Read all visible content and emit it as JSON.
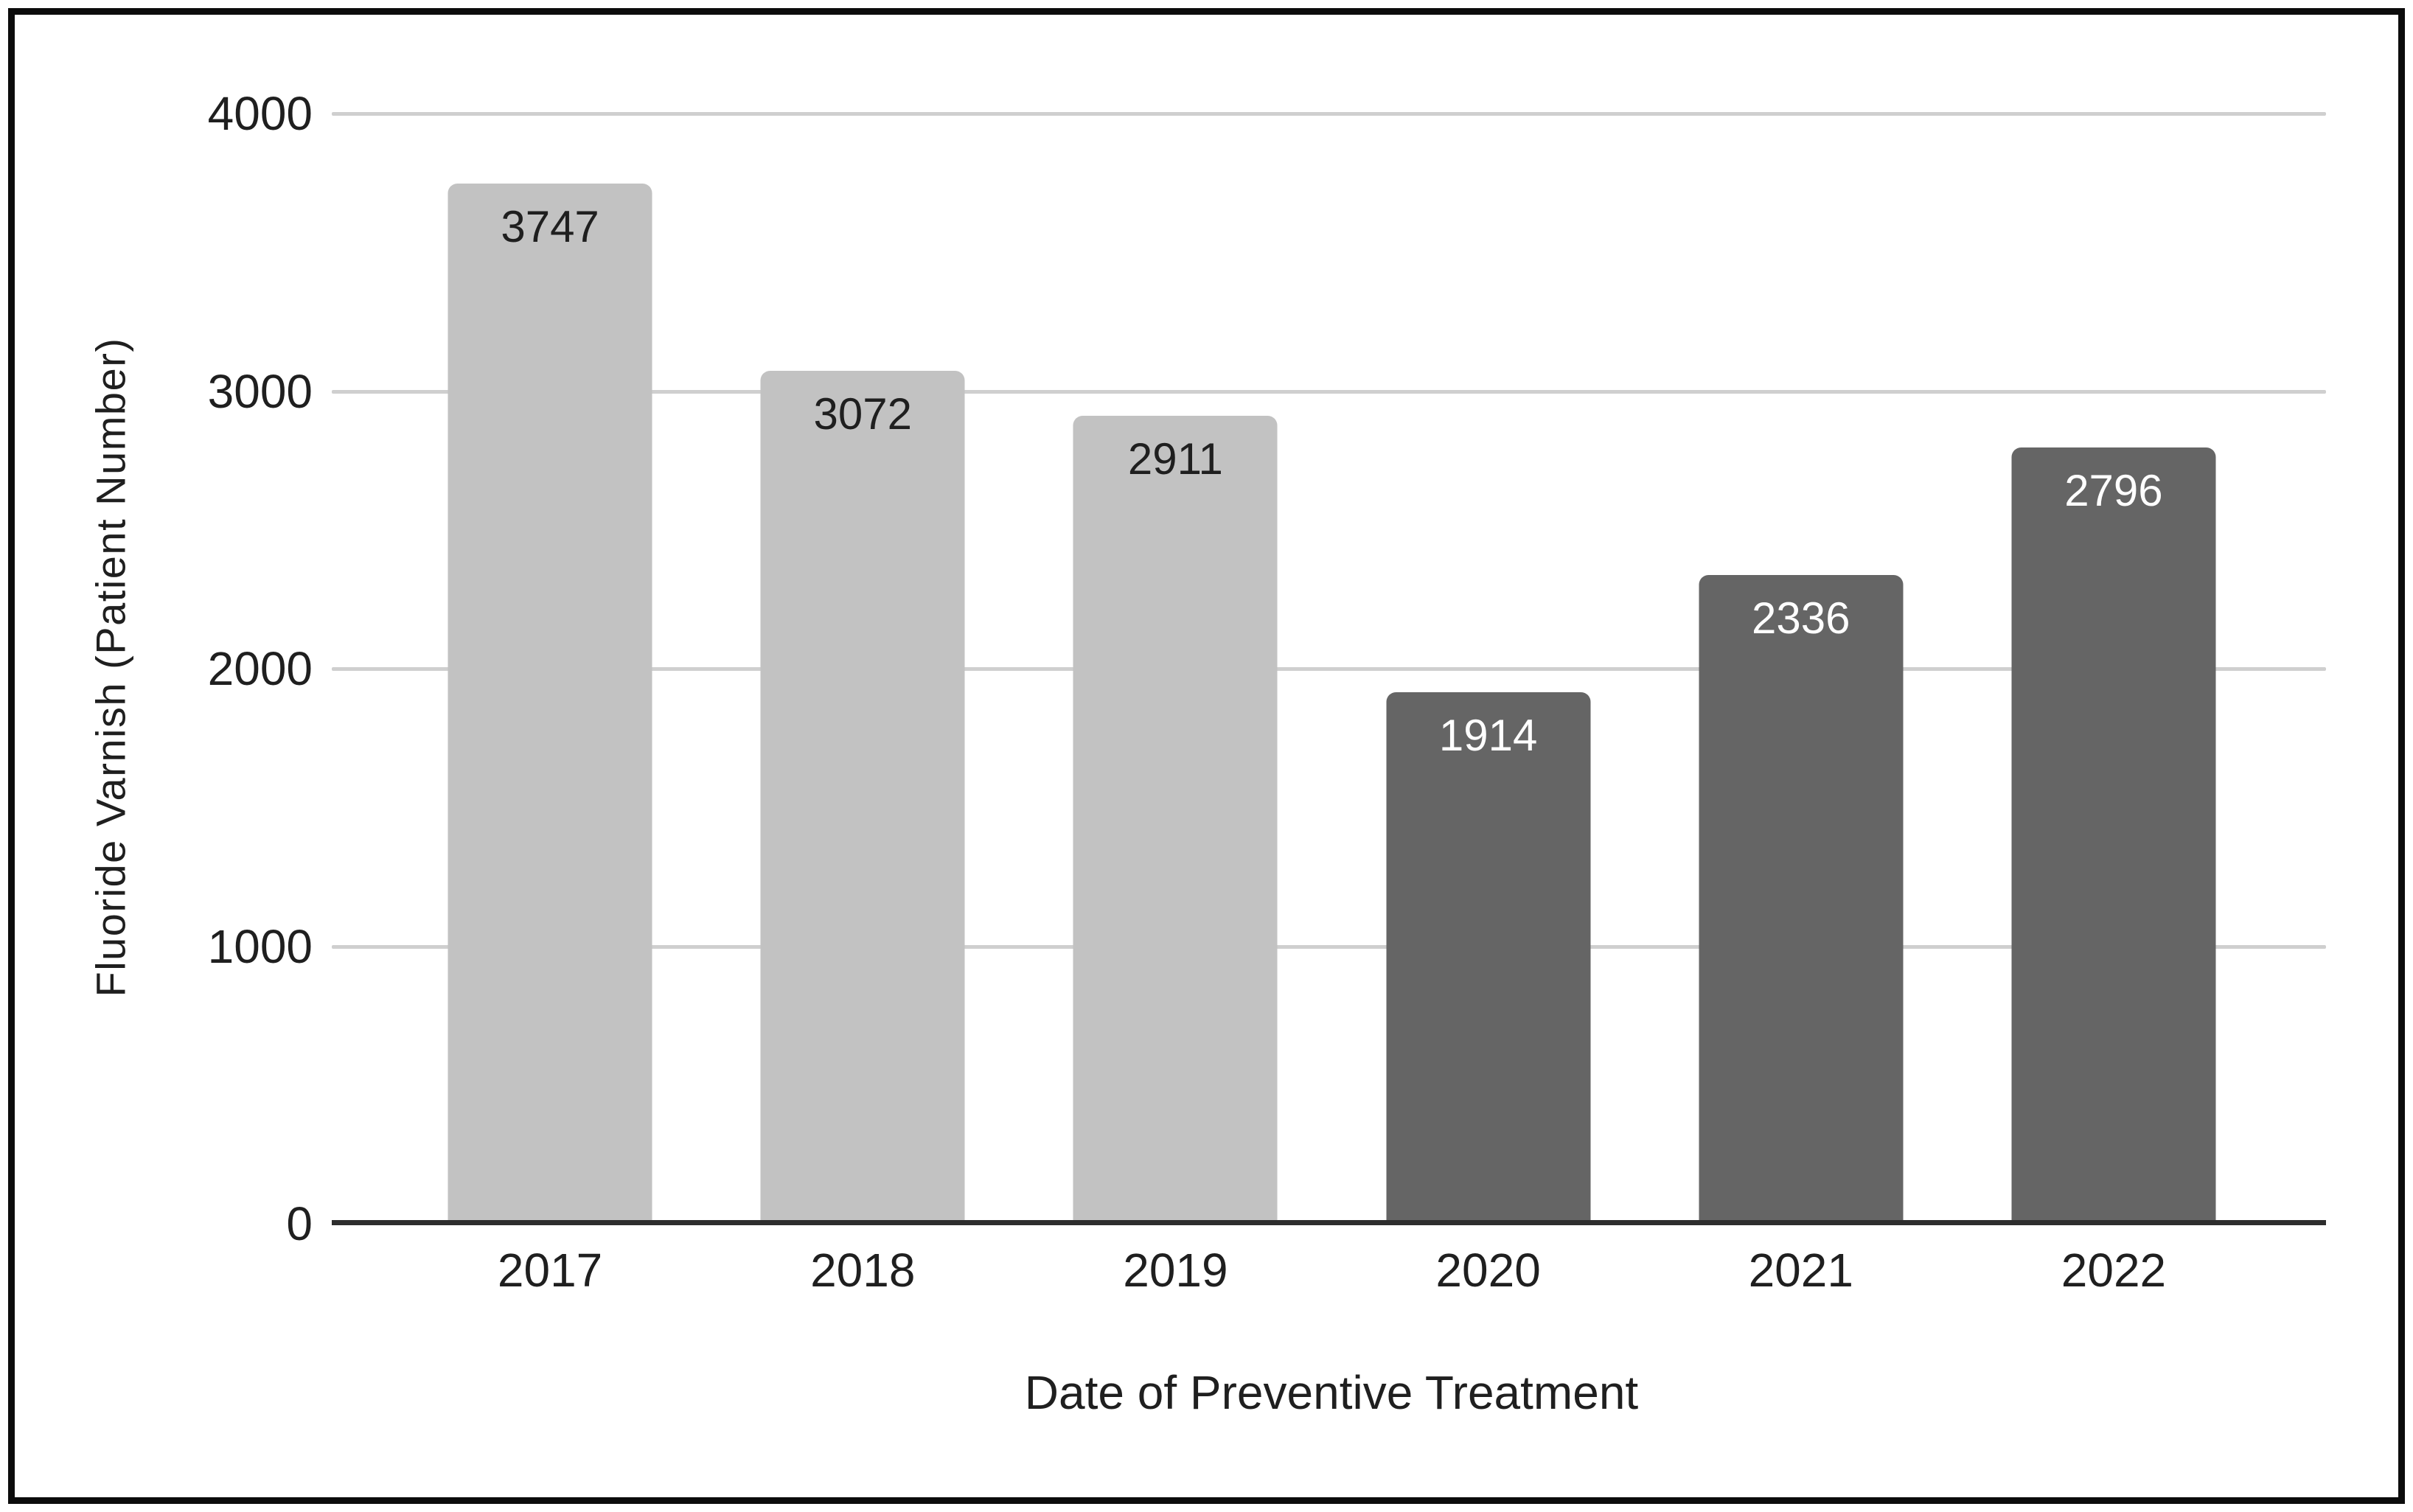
{
  "chart_data": {
    "type": "bar",
    "title": "",
    "xlabel": "Date of Preventive Treatment",
    "ylabel": "Fluoride Varnish (Patient Number)",
    "categories": [
      "2017",
      "2018",
      "2019",
      "2020",
      "2021",
      "2022"
    ],
    "values": [
      3747,
      3072,
      2911,
      1914,
      2336,
      2796
    ],
    "data_labels": [
      "3747",
      "3072",
      "2911",
      "1914",
      "2336",
      "2796"
    ],
    "data_label_position": "inside-top",
    "bar_colors": [
      "#c2c2c2",
      "#c2c2c2",
      "#c2c2c2",
      "#656565",
      "#656565",
      "#656565"
    ],
    "data_label_colors": [
      "#1f1f1f",
      "#1f1f1f",
      "#1f1f1f",
      "#ffffff",
      "#ffffff",
      "#ffffff"
    ],
    "ylim": [
      0,
      4000
    ],
    "yticks": [
      0,
      1000,
      2000,
      3000,
      4000
    ],
    "ytick_labels": [
      "0",
      "1000",
      "2000",
      "3000",
      "4000"
    ],
    "grid": "horizontal",
    "legend": "none",
    "colors": {
      "gridline": "#cfcfcf",
      "axis_line": "#2d2d2d",
      "frame_border": "#0c0c0c",
      "background": "#ffffff",
      "tick_text": "#1f1f1f"
    }
  }
}
